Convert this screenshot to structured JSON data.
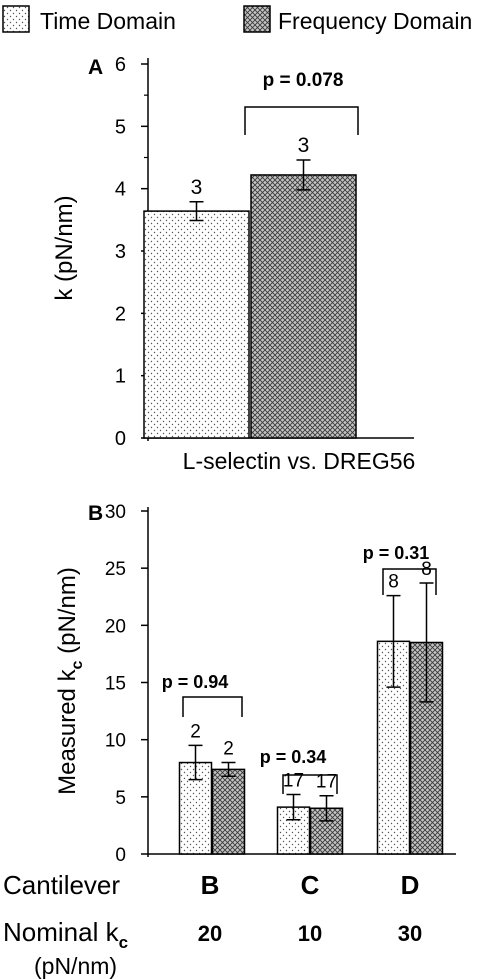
{
  "legend": {
    "items": [
      {
        "label": "Time Domain",
        "pattern": "dots"
      },
      {
        "label": "Frequency Domain",
        "pattern": "crosshatch"
      }
    ]
  },
  "chart_data": [
    {
      "panel": "A",
      "type": "bar",
      "categories": [
        "L-selectin vs. DREG56"
      ],
      "series": [
        {
          "name": "Time Domain",
          "values": [
            3.64
          ],
          "errors": [
            0.15
          ],
          "n": [
            "3"
          ]
        },
        {
          "name": "Frequency Domain",
          "values": [
            4.22
          ],
          "errors": [
            0.24
          ],
          "n": [
            "3"
          ]
        }
      ],
      "ylabel": "k (pN/nm)",
      "ylim": [
        0,
        6
      ],
      "yticks": [
        "0",
        "1",
        "2",
        "3",
        "4",
        "5",
        "6"
      ],
      "annotations": [
        {
          "text": "p = 0.078"
        }
      ]
    },
    {
      "panel": "B",
      "type": "bar",
      "categories": [
        "B",
        "C",
        "D"
      ],
      "series": [
        {
          "name": "Time Domain",
          "values": [
            8.0,
            4.1,
            18.6
          ],
          "errors": [
            1.5,
            1.1,
            4.0
          ],
          "n": [
            "2",
            "17",
            "8"
          ]
        },
        {
          "name": "Frequency Domain",
          "values": [
            7.4,
            4.0,
            18.5
          ],
          "errors": [
            0.6,
            1.1,
            5.2
          ],
          "n": [
            "2",
            "17",
            "8"
          ]
        }
      ],
      "ylabel_main": "Measured k",
      "ylabel_sub": "c",
      "ylabel_tail": " (pN/nm)",
      "ylim": [
        0,
        30
      ],
      "yticks": [
        "0",
        "5",
        "10",
        "15",
        "20",
        "25",
        "30"
      ],
      "annotations": [
        {
          "text": "p = 0.94"
        },
        {
          "text": "p = 0.34"
        },
        {
          "text": "p = 0.31"
        }
      ],
      "row_labels": {
        "cantilever": "Cantilever",
        "nominal_main": "Nominal k",
        "nominal_sub": "c",
        "nominal_unit": "(pN/nm)"
      },
      "nominal_values": [
        "20",
        "10",
        "30"
      ]
    }
  ]
}
